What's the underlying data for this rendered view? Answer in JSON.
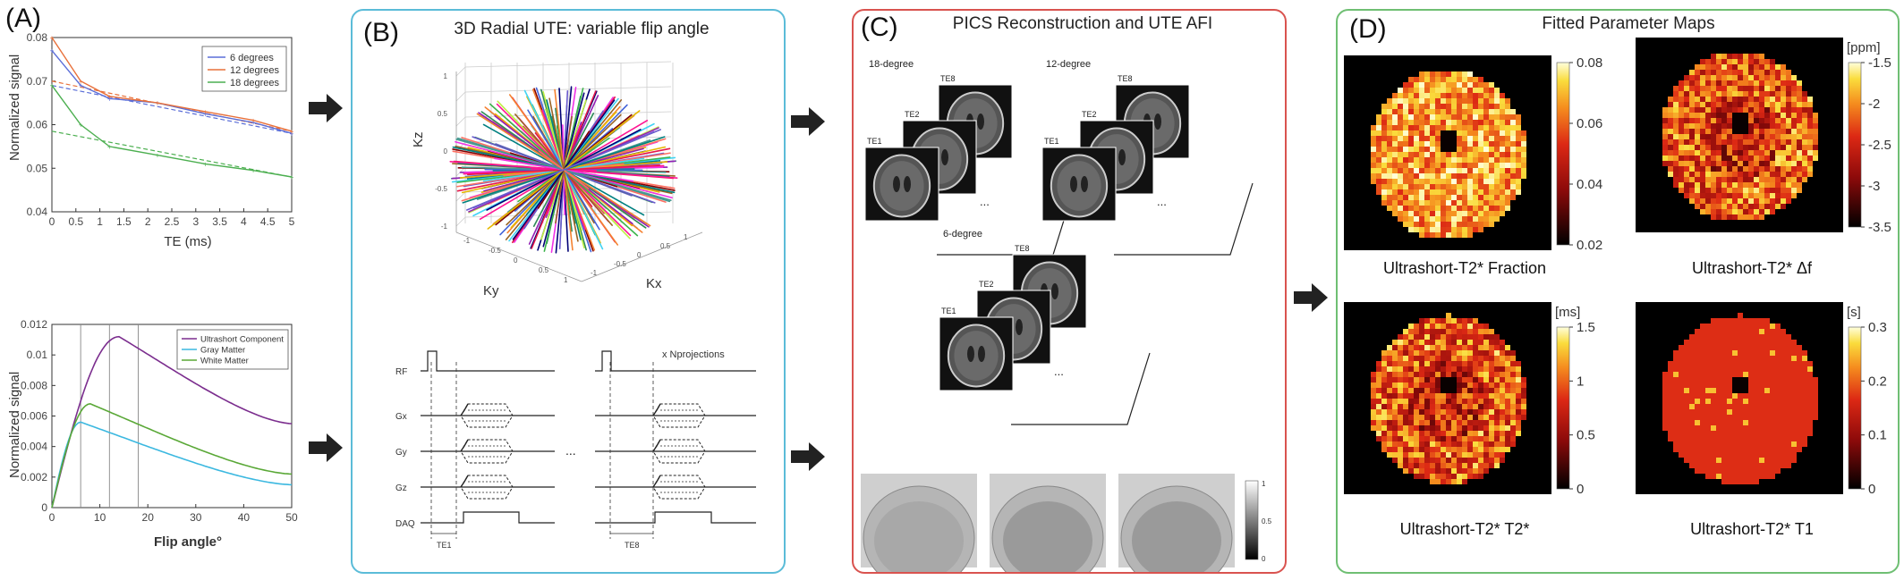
{
  "panels": {
    "a": {
      "letter": "(A)"
    },
    "b": {
      "letter": "(B)",
      "title": "3D Radial UTE: variable flip angle"
    },
    "c": {
      "letter": "(C)",
      "title": "PICS Reconstruction and UTE AFI"
    },
    "d": {
      "letter": "(D)",
      "title": "Fitted Parameter Maps"
    }
  },
  "frame_colors": {
    "b": "#5bbcd8",
    "c": "#d9534f",
    "d": "#6fbf73"
  },
  "arrow_icon": "right-arrow-icon",
  "chart_data": [
    {
      "type": "line",
      "xlabel": "TE (ms)",
      "ylabel": "Normalized signal",
      "xlim": [
        0,
        5
      ],
      "ylim": [
        0.04,
        0.08
      ],
      "xticks": [
        "0",
        "0.5",
        "1",
        "1.5",
        "2",
        "2.5",
        "3",
        "3.5",
        "4",
        "4.5",
        "5"
      ],
      "yticks": [
        "0.04",
        "0.05",
        "0.06",
        "0.07",
        "0.08"
      ],
      "legend_position": "top-right",
      "series": [
        {
          "name": "6 degrees",
          "color": "#5b6ed8",
          "x": [
            0,
            0.6,
            1.2,
            2.2,
            3.2,
            4.2,
            5
          ],
          "y": [
            0.077,
            0.069,
            0.066,
            0.065,
            0.0625,
            0.0605,
            0.058
          ]
        },
        {
          "name": "12 degrees",
          "color": "#e8703a",
          "x": [
            0,
            0.6,
            1.2,
            2.2,
            3.2,
            4.2,
            5
          ],
          "y": [
            0.08,
            0.07,
            0.0665,
            0.065,
            0.063,
            0.061,
            0.0585
          ]
        },
        {
          "name": "18 degrees",
          "color": "#4caf50",
          "x": [
            0,
            0.6,
            1.2,
            2.2,
            3.2,
            4.2,
            5
          ],
          "y": [
            0.069,
            0.06,
            0.055,
            0.053,
            0.051,
            0.0495,
            0.048
          ]
        }
      ],
      "fits": [
        {
          "color": "#5b6ed8",
          "x": [
            0,
            5
          ],
          "y": [
            0.069,
            0.058
          ]
        },
        {
          "color": "#e8703a",
          "x": [
            0,
            5
          ],
          "y": [
            0.07,
            0.0585
          ]
        },
        {
          "color": "#4caf50",
          "x": [
            0,
            5
          ],
          "y": [
            0.0585,
            0.048
          ]
        }
      ]
    },
    {
      "type": "line",
      "xlabel": "Flip angle°",
      "ylabel": "Normalized signal",
      "xlim": [
        0,
        50
      ],
      "ylim": [
        0,
        0.012
      ],
      "xticks": [
        "0",
        "10",
        "20",
        "30",
        "40",
        "50"
      ],
      "yticks": [
        "0",
        "0.002",
        "0.004",
        "0.006",
        "0.008",
        "0.01",
        "0.012"
      ],
      "vlines": [
        6,
        12,
        18
      ],
      "legend_position": "top-right",
      "series": [
        {
          "name": "Ultrashort Component",
          "color": "#7b2d8e",
          "peak_x": 14,
          "peak_y": 0.0112,
          "end_y": 0.0055
        },
        {
          "name": "Gray Matter",
          "color": "#3bb8e0",
          "peak_x": 6,
          "peak_y": 0.0056,
          "end_y": 0.0015
        },
        {
          "name": "White Matter",
          "color": "#5aa837",
          "peak_x": 8,
          "peak_y": 0.0068,
          "end_y": 0.0022
        }
      ]
    },
    {
      "type": "scatter",
      "xlabel": "Kx",
      "ylabel": "Ky",
      "zlabel": "Kz",
      "ticks": [
        "1",
        "0.5",
        "0",
        "-0.5",
        "-1"
      ]
    }
  ],
  "sequence": {
    "rows": [
      "RF",
      "Gx",
      "Gy",
      "Gz",
      "DAQ"
    ],
    "repeat_label": "x Nprojections",
    "ellipsis": "...",
    "te_labels": [
      "TE1",
      "TE8"
    ]
  },
  "recon": {
    "groups": [
      {
        "label": "18-degree",
        "echoes": [
          "TE1",
          "TE2",
          "TE8"
        ]
      },
      {
        "label": "12-degree",
        "echoes": [
          "TE1",
          "TE2",
          "TE8"
        ]
      },
      {
        "label": "6-degree",
        "echoes": [
          "TE1",
          "TE2",
          "TE8"
        ]
      }
    ],
    "ellipsis": "...",
    "afi_colorbar_ticks": [
      "1",
      "0.5",
      "0"
    ]
  },
  "maps": [
    {
      "caption": "Ultrashort-T2* Fraction",
      "unit": "",
      "ticks": [
        "0.08",
        "0.06",
        "0.04",
        "0.02"
      ]
    },
    {
      "caption": "Ultrashort-T2* Δf",
      "unit": "[ppm]",
      "ticks": [
        "-1.5",
        "-2",
        "-2.5",
        "-3",
        "-3.5"
      ]
    },
    {
      "caption": "Ultrashort-T2* T2*",
      "unit": "[ms]",
      "ticks": [
        "1.5",
        "1",
        "0.5",
        "0"
      ]
    },
    {
      "caption": "Ultrashort-T2* T1",
      "unit": "[s]",
      "ticks": [
        "0.3",
        "0.2",
        "0.1",
        "0"
      ]
    }
  ]
}
